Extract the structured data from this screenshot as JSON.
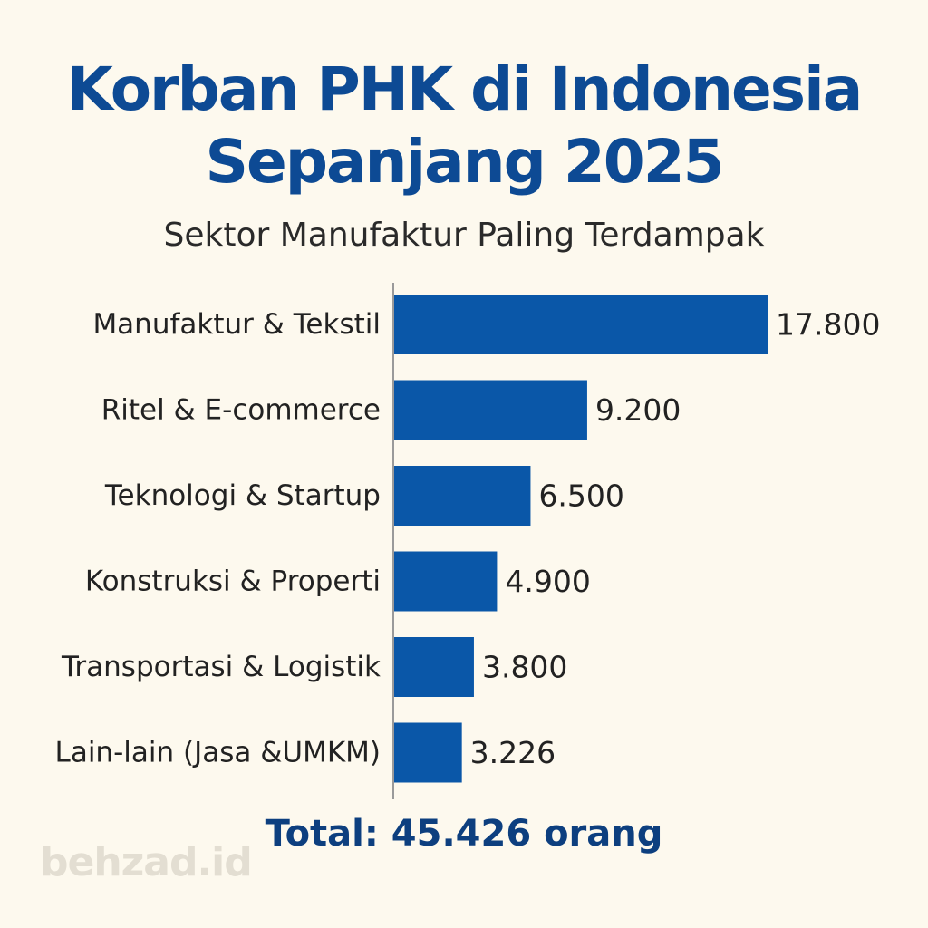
{
  "title_lines": [
    "Korban PHK di Indonesia",
    "Sepanjang 2025"
  ],
  "subtitle": "Sektor Manufaktur Paling Terdampak",
  "total_text": "Total: 45.426 orang",
  "watermark": "behzad.id",
  "colors": {
    "bar": "#0a57a8",
    "title": "#0d4a94",
    "background": "#fdf9ee",
    "axis": "#9a9a9a"
  },
  "chart_data": {
    "type": "bar",
    "orientation": "horizontal",
    "title": "Korban PHK di Indonesia Sepanjang 2025",
    "subtitle": "Sektor Manufaktur Paling Terdampak",
    "categories": [
      "Manufaktur & Tekstil",
      "Ritel & E-commerce",
      "Teknologi & Startup",
      "Konstruksi & Properti",
      "Transportasi & Logistik",
      "Lain-lain (Jasa &UMKM)"
    ],
    "values": [
      17800,
      9200,
      6500,
      4900,
      3800,
      3226
    ],
    "value_labels": [
      "17.800",
      "9.200",
      "6.500",
      "4.900",
      "3.800",
      "3.226"
    ],
    "xlabel": "",
    "ylabel": "",
    "grid": false,
    "legend": "none"
  }
}
